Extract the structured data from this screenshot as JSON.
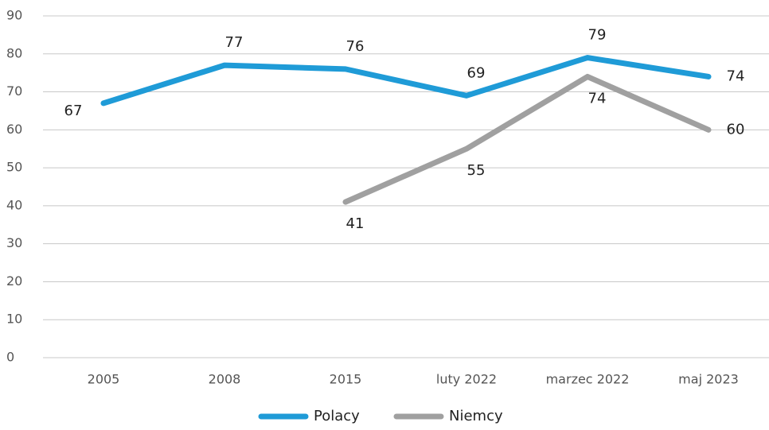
{
  "chart_data": {
    "type": "line",
    "categories": [
      "2005",
      "2008",
      "2015",
      "luty 2022",
      "marzec 2022",
      "maj 2023"
    ],
    "series": [
      {
        "name": "Polacy",
        "color": "#1f9bd7",
        "values": [
          67,
          77,
          76,
          69,
          79,
          74
        ]
      },
      {
        "name": "Niemcy",
        "color": "#a0a0a0",
        "values": [
          null,
          null,
          41,
          55,
          74,
          60
        ]
      }
    ],
    "ylim": [
      0,
      90
    ],
    "yticks": [
      0,
      10,
      20,
      30,
      40,
      50,
      60,
      70,
      80,
      90
    ],
    "grid": true,
    "legend": "bottom"
  }
}
